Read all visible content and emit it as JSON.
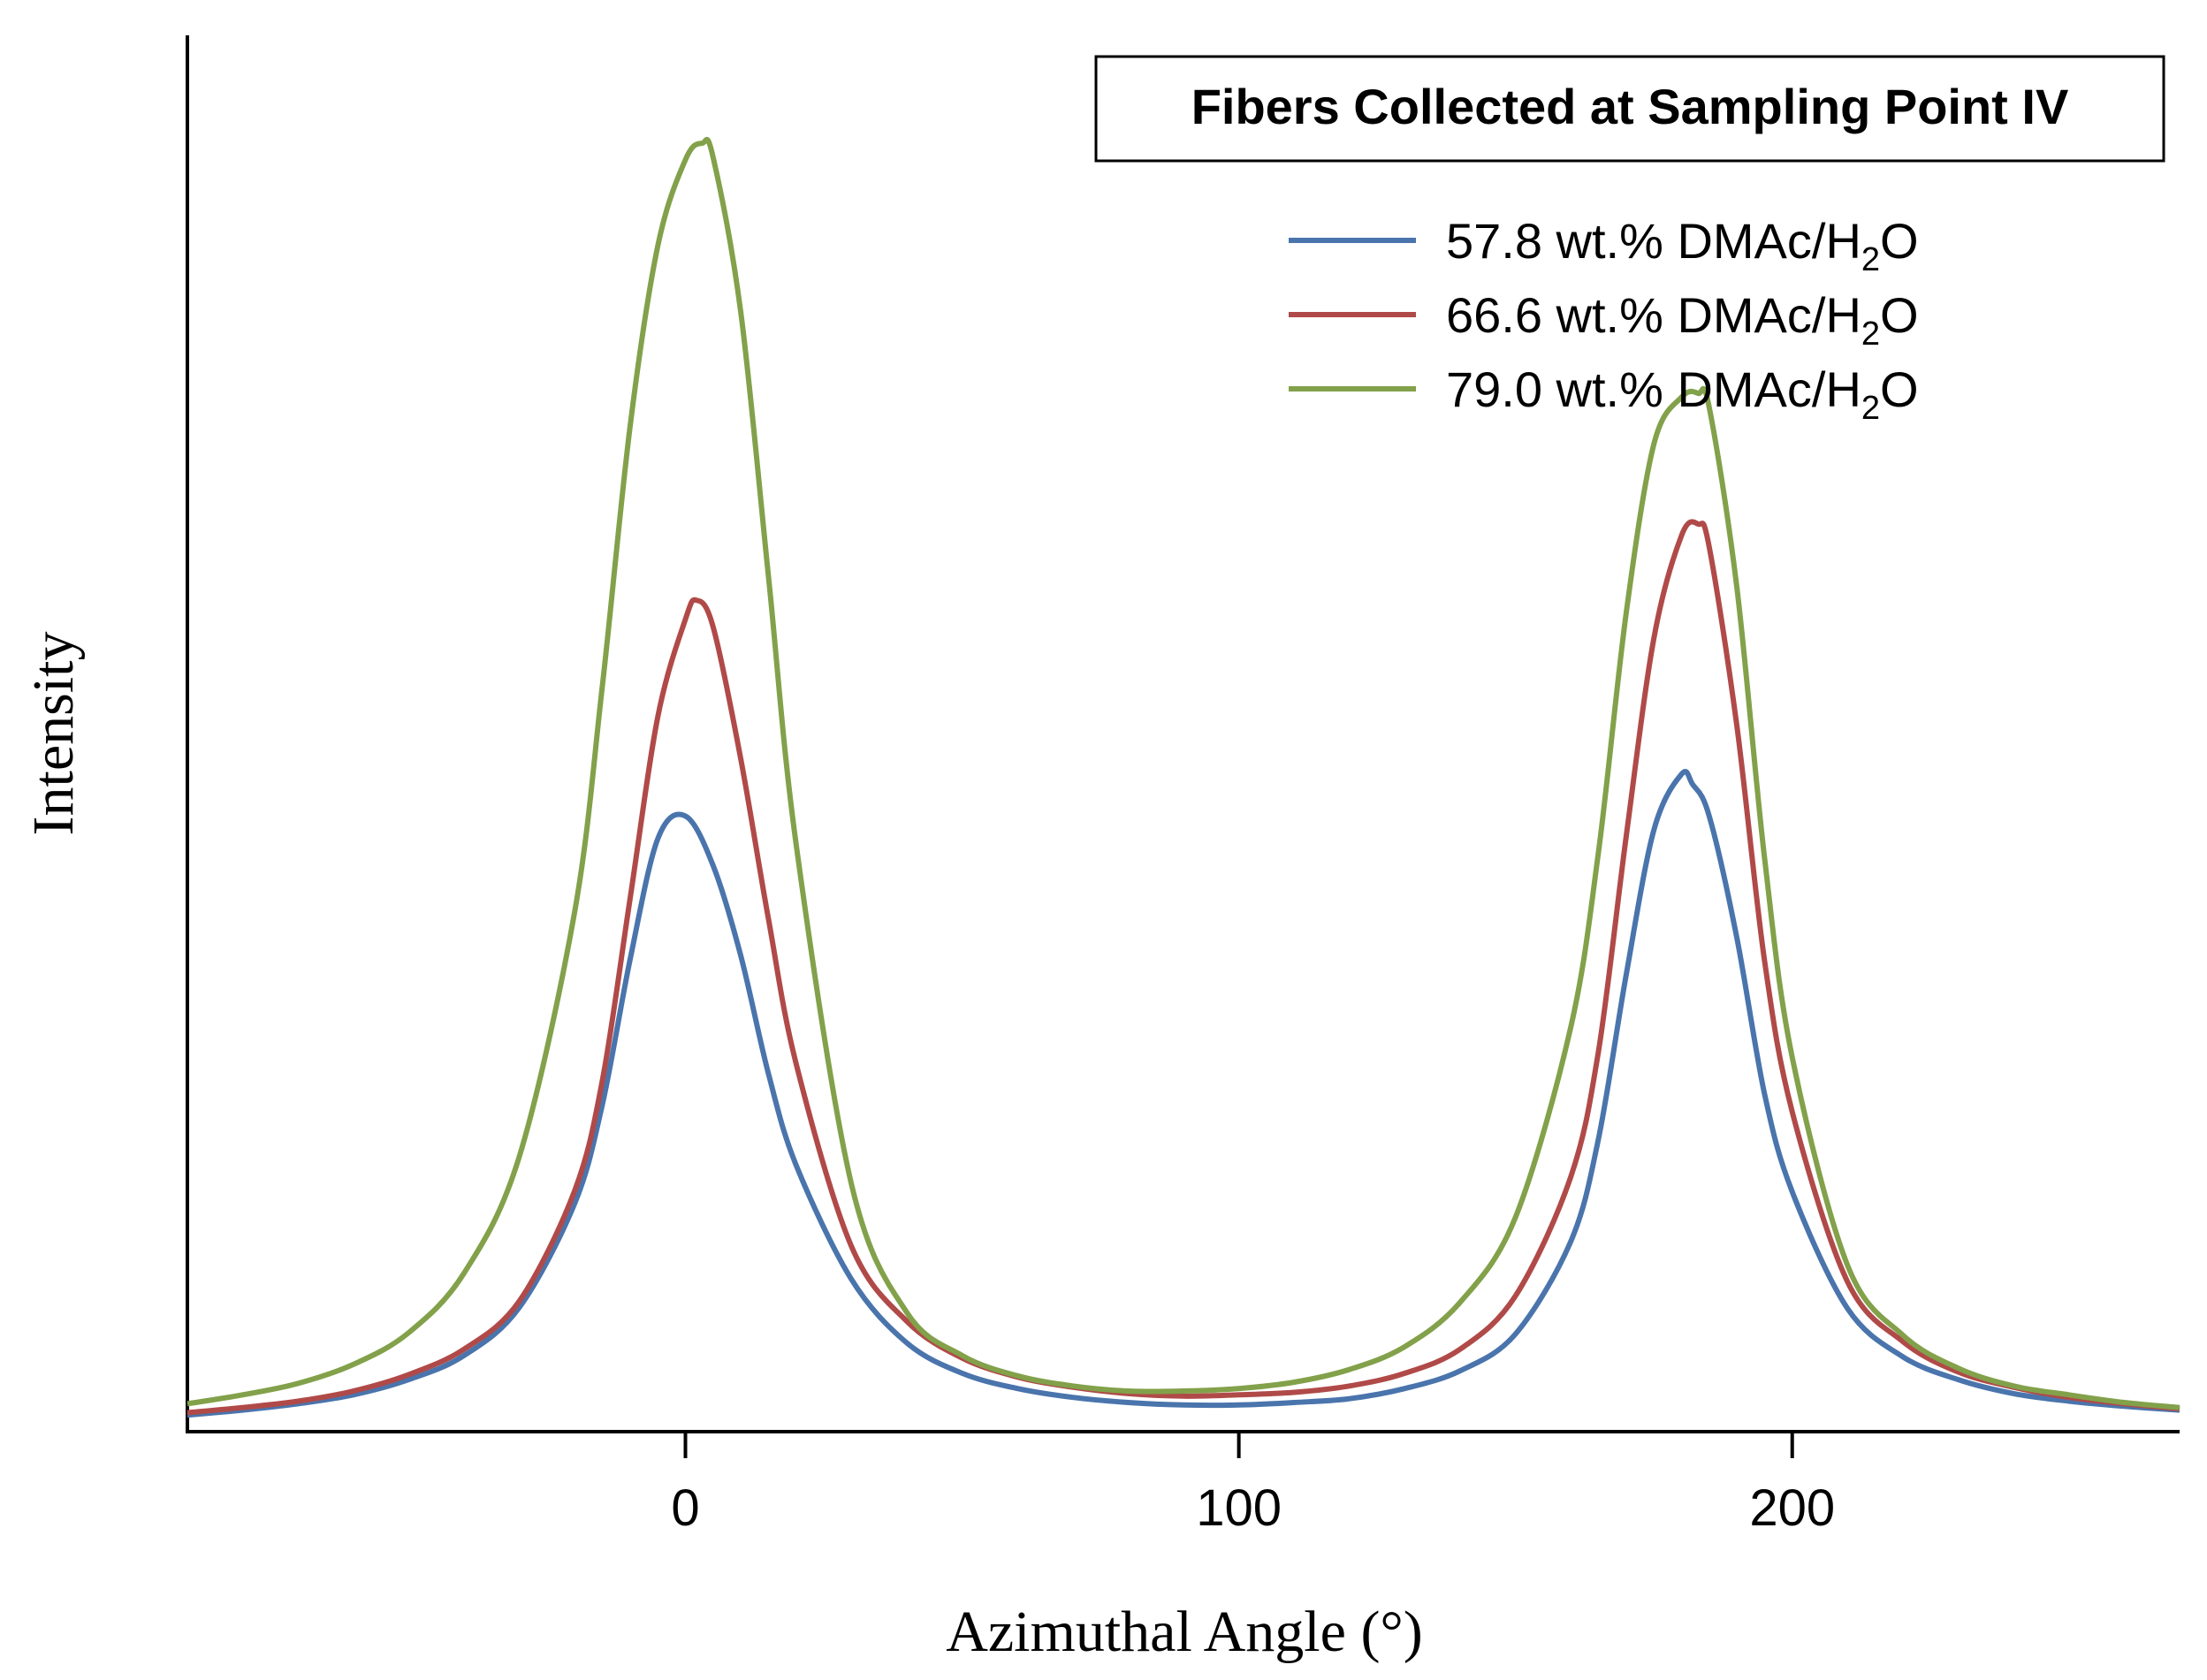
{
  "chart_data": {
    "type": "line",
    "title": "Fibers Collected at Sampling Point IV",
    "xlabel": "Azimuthal Angle (°)",
    "ylabel": "Intensity",
    "xlim": [
      -90,
      270
    ],
    "ylim": [
      0,
      110
    ],
    "xticks": [
      0,
      100,
      200
    ],
    "yticks": [],
    "grid": false,
    "legend_position": "top-right",
    "series": [
      {
        "name": "57.8 wt.% DMAc/H2O",
        "label_main": "57.8 wt.% DMAc/H",
        "label_sub": "2",
        "label_tail": "O",
        "color": "#4a74ac",
        "x": [
          -90,
          -80,
          -70,
          -60,
          -50,
          -40,
          -30,
          -20,
          -15,
          -10,
          -5,
          0,
          5,
          10,
          15,
          20,
          30,
          40,
          50,
          60,
          70,
          80,
          90,
          100,
          110,
          120,
          130,
          140,
          150,
          160,
          165,
          170,
          175,
          180,
          182,
          185,
          190,
          195,
          200,
          210,
          220,
          230,
          240,
          250,
          260,
          270
        ],
        "y": [
          1.3,
          1.7,
          2.2,
          2.9,
          4.1,
          6.0,
          9.8,
          18.0,
          25.8,
          37.2,
          46.7,
          48.5,
          44.6,
          37.5,
          28.2,
          21.0,
          12.0,
          7.0,
          4.6,
          3.4,
          2.7,
          2.3,
          2.1,
          2.1,
          2.3,
          2.6,
          3.4,
          4.8,
          7.7,
          15.0,
          23.1,
          36.0,
          47.4,
          51.8,
          51.0,
          48.5,
          38.9,
          26.6,
          18.9,
          9.7,
          5.9,
          4.1,
          3.0,
          2.4,
          2.0,
          1.7
        ]
      },
      {
        "name": "66.6 wt.% DMAc/H2O",
        "label_main": "66.6 wt.% DMAc/H",
        "label_sub": "2",
        "label_tail": "O",
        "color": "#b04a48",
        "x": [
          -90,
          -80,
          -70,
          -60,
          -50,
          -40,
          -30,
          -20,
          -15,
          -10,
          -5,
          0,
          2,
          5,
          10,
          15,
          20,
          30,
          40,
          50,
          60,
          70,
          80,
          90,
          100,
          110,
          120,
          130,
          140,
          150,
          160,
          165,
          170,
          175,
          180,
          183,
          185,
          190,
          195,
          200,
          210,
          220,
          230,
          240,
          250,
          260,
          270
        ],
        "y": [
          1.5,
          1.9,
          2.4,
          3.2,
          4.5,
          6.5,
          10.3,
          19.0,
          27.7,
          42.0,
          56.3,
          64.0,
          65.5,
          63.4,
          53.0,
          40.4,
          29.0,
          14.6,
          8.7,
          5.8,
          4.3,
          3.5,
          3.0,
          2.8,
          2.9,
          3.1,
          3.6,
          4.6,
          6.5,
          10.7,
          20.1,
          30.0,
          46.9,
          62.5,
          70.6,
          71.5,
          69.7,
          55.6,
          37.1,
          25.2,
          11.8,
          7.1,
          4.7,
          3.5,
          2.7,
          2.2,
          1.8
        ]
      },
      {
        "name": "79.0 wt.% DMAc/H2O",
        "label_main": "79.0 wt.% DMAc/H",
        "label_sub": "2",
        "label_tail": "O",
        "color": "#82a14a",
        "x": [
          -90,
          -80,
          -70,
          -60,
          -50,
          -40,
          -30,
          -20,
          -15,
          -10,
          -5,
          0,
          3,
          5,
          10,
          15,
          20,
          30,
          40,
          50,
          60,
          70,
          80,
          90,
          100,
          110,
          120,
          130,
          140,
          150,
          160,
          165,
          170,
          175,
          180,
          183,
          185,
          190,
          195,
          200,
          210,
          220,
          230,
          240,
          250,
          260,
          270
        ],
        "y": [
          2.2,
          2.9,
          3.8,
          5.3,
          7.8,
          12.5,
          21.7,
          41.0,
          58.8,
          79.2,
          93.4,
          100.2,
          101.5,
          100.4,
          88.2,
          67.4,
          46.3,
          19.5,
          9.4,
          6.0,
          4.4,
          3.6,
          3.2,
          3.2,
          3.4,
          3.9,
          4.9,
          6.7,
          10.2,
          16.9,
          31.9,
          45.7,
          64.5,
          77.8,
          81.5,
          81.8,
          80.7,
          66.5,
          45.2,
          29.5,
          13.1,
          7.6,
          5.0,
          3.6,
          2.9,
          2.3,
          1.9
        ]
      }
    ]
  }
}
